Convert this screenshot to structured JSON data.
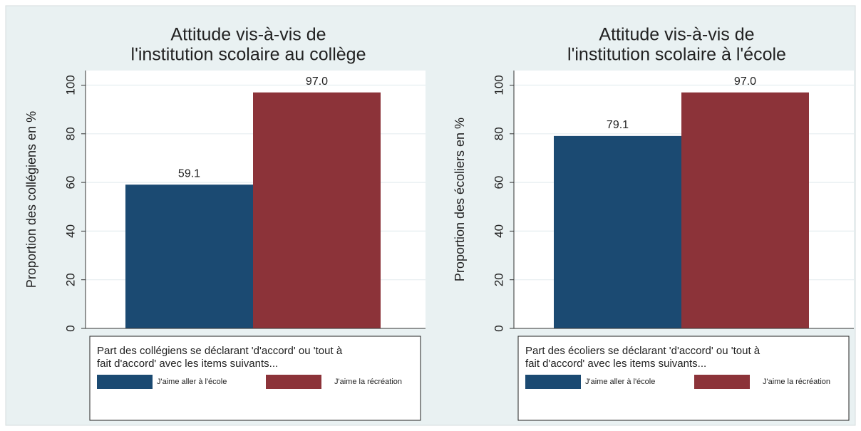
{
  "chart_data": [
    {
      "type": "bar",
      "title": [
        "Attitude vis-à-vis de",
        "l'institution scolaire au collège"
      ],
      "y_label": "Proportion des collégiens en %",
      "legend_title": [
        "Part des collégiens se déclarant 'd'accord' ou 'tout à",
        "fait d'accord' avec les items suivants..."
      ],
      "series": [
        {
          "name": "J'aime aller à l'école",
          "color": "#1b4a72",
          "values": [
            59.1
          ],
          "value_labels": [
            "59.1"
          ]
        },
        {
          "name": "J'aime la récréation",
          "color": "#8c3339",
          "values": [
            97.0
          ],
          "value_labels": [
            "97.0"
          ]
        }
      ],
      "ylim": [
        0,
        106
      ],
      "yticks": [
        0,
        20,
        40,
        60,
        80,
        100
      ],
      "grid": true,
      "legend": "bottom"
    },
    {
      "type": "bar",
      "title": [
        "Attitude vis-à-vis de",
        "l'institution scolaire à l'école"
      ],
      "y_label": "Proportion des écoliers en %",
      "legend_title": [
        "Part des écoliers se déclarant 'd'accord' ou 'tout à",
        "fait d'accord' avec les items suivants..."
      ],
      "series": [
        {
          "name": "J'aime aller à l'école",
          "color": "#1b4a72",
          "values": [
            79.1
          ],
          "value_labels": [
            "79.1"
          ]
        },
        {
          "name": "J'aime la récréation",
          "color": "#8c3339",
          "values": [
            97.0
          ],
          "value_labels": [
            "97.0"
          ]
        }
      ],
      "ylim": [
        0,
        106
      ],
      "yticks": [
        0,
        20,
        40,
        60,
        80,
        100
      ],
      "grid": true,
      "legend": "bottom"
    }
  ]
}
